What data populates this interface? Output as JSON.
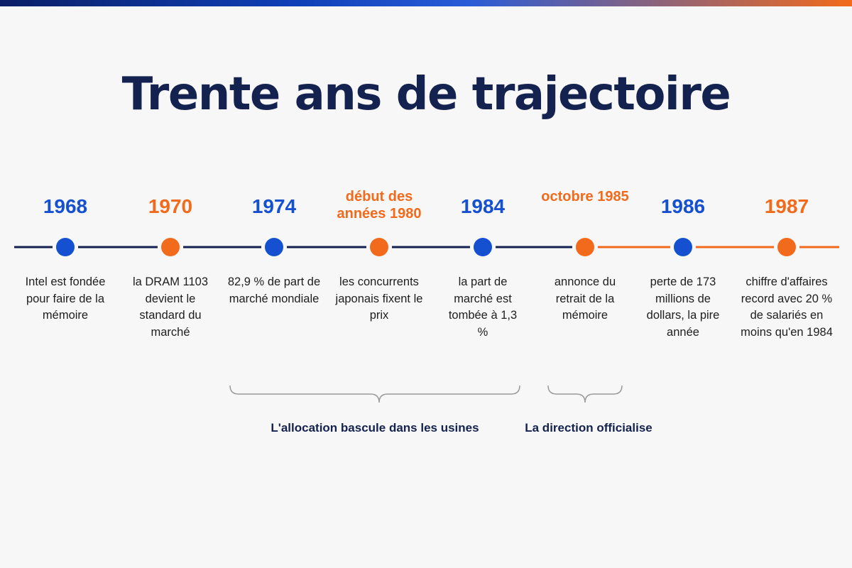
{
  "title": "Trente ans de trajectoire",
  "colors": {
    "blue": "#1550d0",
    "orange": "#f26a1b",
    "navy": "#14224f"
  },
  "events": [
    {
      "label": "1968",
      "description": "Intel est fondée pour faire de la mémoire",
      "color": "blue"
    },
    {
      "label": "1970",
      "description": "la DRAM 1103 devient le standard du marché",
      "color": "orange"
    },
    {
      "label": "1974",
      "description": "82,9 % de part de marché mondiale",
      "color": "blue"
    },
    {
      "label": "début des années 1980",
      "description": "les concurrents japonais fixent le prix",
      "color": "orange"
    },
    {
      "label": "1984",
      "description": "la part de marché est tombée à 1,3 %",
      "color": "blue"
    },
    {
      "label": "octobre 1985",
      "description": "annonce du retrait de la mémoire",
      "color": "orange"
    },
    {
      "label": "1986",
      "description": "perte de 173 millions de dollars, la pire année",
      "color": "blue"
    },
    {
      "label": "1987",
      "description": "chiffre d'affaires record avec 20 % de salariés en moins qu'en 1984",
      "color": "orange"
    }
  ],
  "phases": [
    {
      "label": "L'allocation bascule dans les usines"
    },
    {
      "label": "La direction officialise"
    }
  ]
}
